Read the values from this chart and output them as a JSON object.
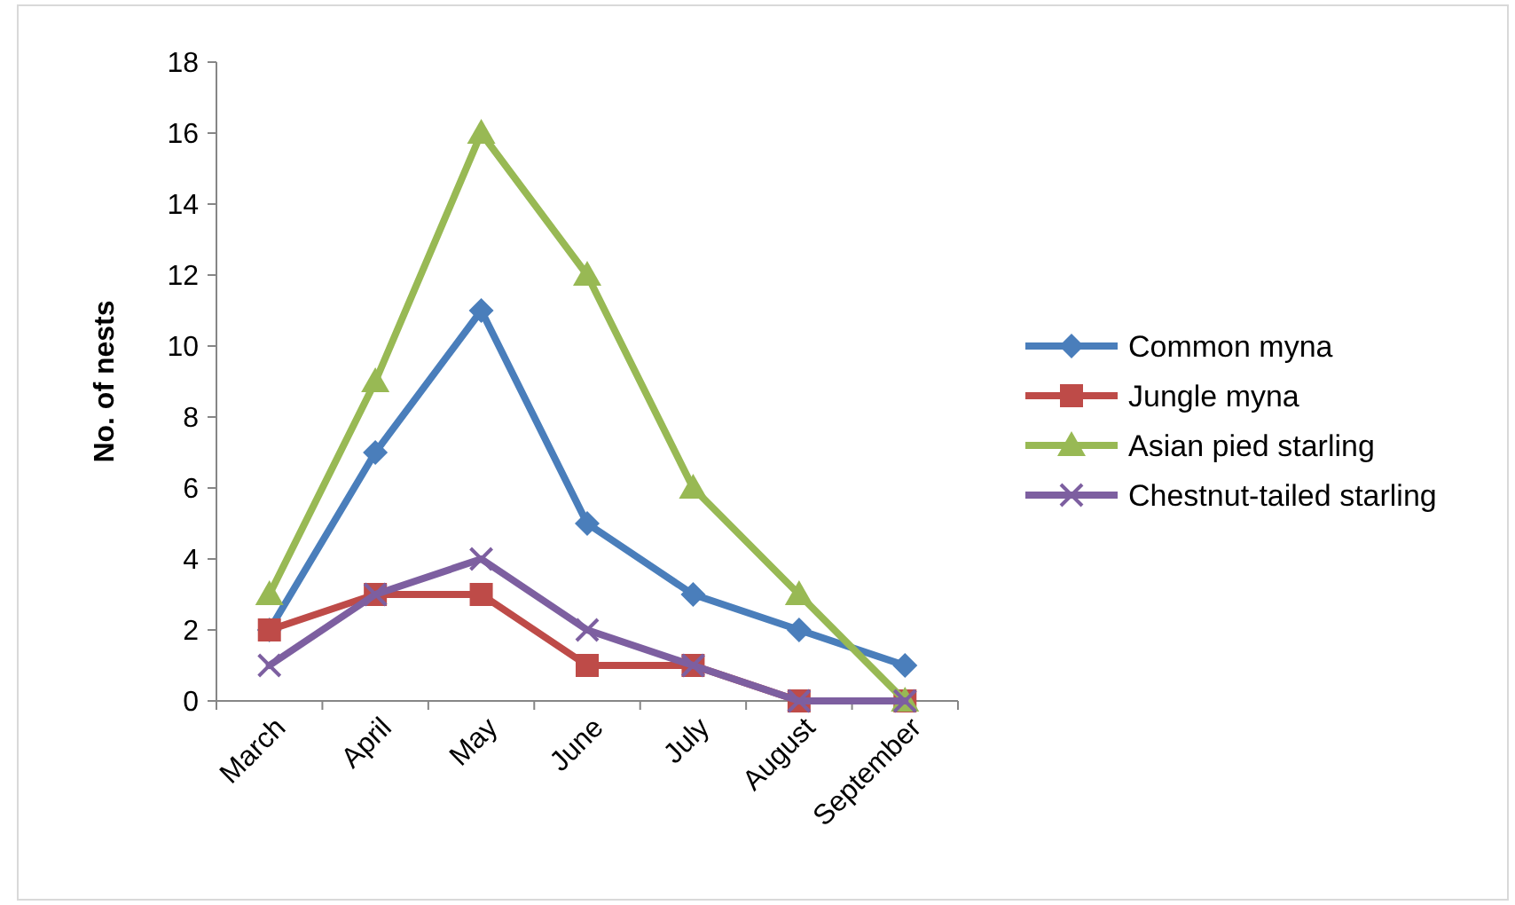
{
  "chart_data": {
    "type": "line",
    "ylabel": "No. of nests",
    "categories": [
      "March",
      "April",
      "May",
      "June",
      "July",
      "August",
      "September"
    ],
    "ylim": [
      0,
      18
    ],
    "yticks": [
      0,
      2,
      4,
      6,
      8,
      10,
      12,
      14,
      16,
      18
    ],
    "grid": false,
    "legend": "right",
    "line_style": "solid",
    "series": [
      {
        "name": "Common myna",
        "color": "#4a7ebb",
        "marker": "diamond",
        "values": [
          2,
          7,
          11,
          5,
          3,
          2,
          1
        ]
      },
      {
        "name": "Jungle myna",
        "color": "#be4b48",
        "marker": "square",
        "values": [
          2,
          3,
          3,
          1,
          1,
          0,
          0
        ]
      },
      {
        "name": "Asian pied starling",
        "color": "#98b954",
        "marker": "triangle",
        "values": [
          3,
          9,
          16,
          12,
          6,
          3,
          0
        ]
      },
      {
        "name": "Chestnut-tailed starling",
        "color": "#7d5fa0",
        "marker": "cross",
        "values": [
          1,
          3,
          4,
          2,
          1,
          0,
          0
        ]
      }
    ]
  }
}
